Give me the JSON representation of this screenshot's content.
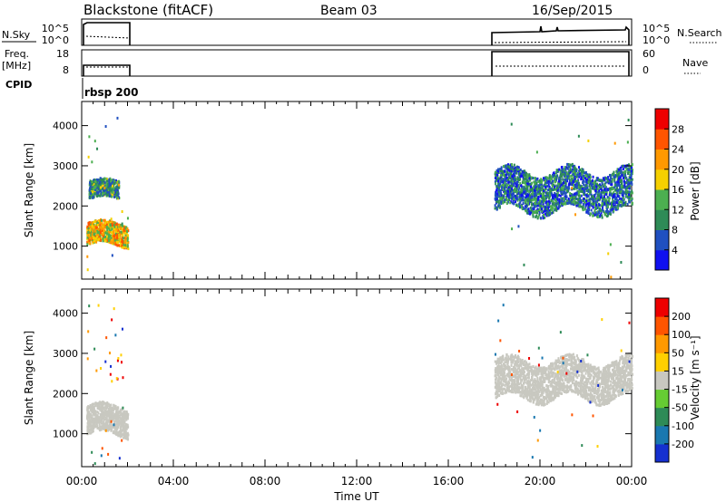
{
  "header": {
    "station": "Blackstone (fitACF)",
    "beam": "Beam 03",
    "date": "16/Sep/2015"
  },
  "panels": {
    "nsky": {
      "label": "N.Sky",
      "tick_top": "10^5",
      "tick_bottom": "10^0",
      "right_label": "N.Search",
      "right_tick_top": "10^5",
      "right_tick_bottom": "10^0"
    },
    "freq": {
      "label_line1": "Freq.",
      "label_line2": "[MHz]",
      "tick_top": "18",
      "tick_bottom": "8",
      "right_label": "Nave",
      "right_tick_top": "60",
      "right_tick_bottom": "0"
    },
    "cpid": {
      "label": "CPID",
      "program": "rbsp 200"
    }
  },
  "colorbars": {
    "power": {
      "label": "Power [dB]",
      "ticks": [
        "4",
        "8",
        "12",
        "16",
        "20",
        "24",
        "28"
      ],
      "colors": [
        "#1010f0",
        "#2050c0",
        "#2e8b57",
        "#4caf50",
        "#f5d000",
        "#ff9900",
        "#ff5500",
        "#ee0000"
      ]
    },
    "velocity": {
      "label": "Velocity [m s⁻¹]",
      "ticks": [
        "200",
        "100",
        "50",
        "15",
        "-15",
        "-50",
        "-100",
        "-200"
      ],
      "colors": [
        "#1530d0",
        "#1a78b0",
        "#2e8b57",
        "#66cc33",
        "#c8c8c0",
        "#ffd000",
        "#ff9900",
        "#ff5500",
        "#ee0000"
      ]
    }
  },
  "axes": {
    "ylabel": "Slant Range [km]",
    "yticks": [
      "1000",
      "2000",
      "3000",
      "4000"
    ],
    "xticks": [
      "00:00",
      "04:00",
      "08:00",
      "12:00",
      "16:00",
      "20:00",
      "00:00"
    ],
    "xlabel": "Time UT"
  },
  "chart_data": {
    "type": "heatmap",
    "x_range_hours": [
      0,
      24
    ],
    "y_range_km": [
      180,
      4600
    ],
    "observation_windows_hours": [
      [
        0.2,
        2.0
      ],
      [
        18.0,
        24.0
      ]
    ],
    "power_panel": {
      "bands": [
        {
          "name": "near",
          "t0": 0.2,
          "t1": 2.0,
          "r0": 1050,
          "r1": 1600,
          "power_db": 20
        },
        {
          "name": "mid",
          "t0": 0.3,
          "t1": 1.6,
          "r0": 2200,
          "r1": 2650,
          "power_db": 10
        },
        {
          "name": "far",
          "t0": 18.0,
          "t1": 24.0,
          "r0": 1900,
          "r1": 2900,
          "power_db": 8
        }
      ]
    },
    "velocity_panel": {
      "bands": [
        {
          "name": "near",
          "t0": 0.2,
          "t1": 2.0,
          "r0": 1000,
          "r1": 1700,
          "velocity_ms": 0
        },
        {
          "name": "far",
          "t0": 18.0,
          "t1": 24.0,
          "r0": 1900,
          "r1": 2850,
          "velocity_ms": 0
        }
      ]
    }
  }
}
